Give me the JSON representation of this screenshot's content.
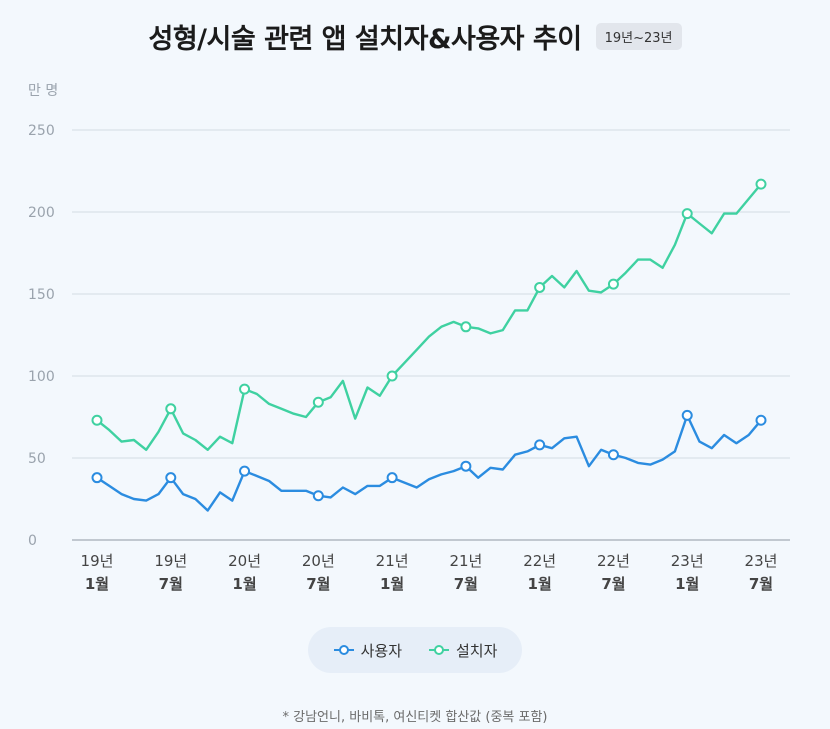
{
  "title": "성형/시술 관련 앱 설치자&사용자 추이",
  "period_badge": "19년~23년",
  "unit_label": "만 명",
  "footnote": "* 강남언니, 바비톡, 여신티켓 합산값 (중복 포함)",
  "colors": {
    "users": "#2b8ce0",
    "installers": "#3fd1a1",
    "grid": "#d3dbe3",
    "axis_text": "#9aa3ad",
    "tick_text": "#444444",
    "background": "#f3f8fd"
  },
  "legend": {
    "users_label": "사용자",
    "installers_label": "설치자"
  },
  "chart_data": {
    "type": "line",
    "title": "성형/시술 관련 앱 설치자&사용자 추이",
    "ylabel": "만 명",
    "ylim": [
      0,
      250
    ],
    "yticks": [
      0,
      50,
      100,
      150,
      200,
      250
    ],
    "x_tick_labels": [
      {
        "index": 0,
        "year": "19년",
        "month": "1월"
      },
      {
        "index": 6,
        "year": "19년",
        "month": "7월"
      },
      {
        "index": 12,
        "year": "20년",
        "month": "1월"
      },
      {
        "index": 18,
        "year": "20년",
        "month": "7월"
      },
      {
        "index": 24,
        "year": "21년",
        "month": "1월"
      },
      {
        "index": 30,
        "year": "21년",
        "month": "7월"
      },
      {
        "index": 36,
        "year": "22년",
        "month": "1월"
      },
      {
        "index": 42,
        "year": "22년",
        "month": "7월"
      },
      {
        "index": 48,
        "year": "23년",
        "month": "1월"
      },
      {
        "index": 54,
        "year": "23년",
        "month": "7월"
      }
    ],
    "marker_indices": [
      0,
      6,
      12,
      18,
      24,
      30,
      36,
      42,
      48,
      54
    ],
    "series": [
      {
        "name": "사용자",
        "values": [
          38,
          33,
          28,
          25,
          24,
          28,
          38,
          28,
          25,
          18,
          29,
          24,
          42,
          39,
          36,
          30,
          30,
          30,
          27,
          26,
          32,
          28,
          33,
          33,
          38,
          35,
          32,
          37,
          40,
          42,
          45,
          38,
          44,
          43,
          52,
          54,
          58,
          56,
          62,
          63,
          45,
          55,
          52,
          50,
          47,
          46,
          49,
          54,
          76,
          60,
          56,
          64,
          59,
          64,
          73
        ]
      },
      {
        "name": "설치자",
        "values": [
          73,
          67,
          60,
          61,
          55,
          66,
          80,
          65,
          61,
          55,
          63,
          59,
          92,
          89,
          83,
          80,
          77,
          75,
          84,
          87,
          97,
          74,
          93,
          88,
          100,
          108,
          116,
          124,
          130,
          133,
          130,
          129,
          126,
          128,
          140,
          140,
          154,
          161,
          154,
          164,
          152,
          151,
          156,
          163,
          171,
          171,
          166,
          180,
          199,
          193,
          187,
          199,
          199,
          208,
          217
        ]
      }
    ]
  }
}
